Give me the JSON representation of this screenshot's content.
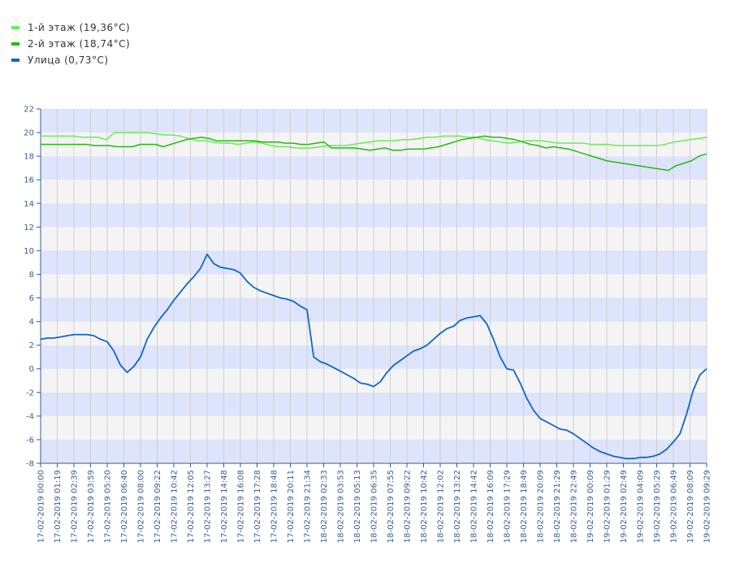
{
  "chart_data": {
    "type": "line",
    "ylim": [
      -8,
      22
    ],
    "y_ticks": [
      "-8",
      "-6",
      "-4",
      "-2",
      "0",
      "2",
      "4",
      "6",
      "8",
      "10",
      "12",
      "14",
      "16",
      "18",
      "20",
      "22"
    ],
    "x_tick_labels": [
      "17-02-2019 00:00",
      "17-02-2019 01:19",
      "17-02-2019 02:39",
      "17-02-2019 03:59",
      "17-02-2019 05:20",
      "17-02-2019 06:40",
      "17-02-2019 08:00",
      "17-02-2019 09:22",
      "17-02-2019 10:42",
      "17-02-2019 12:05",
      "17-02-2019 13:27",
      "17-02-2019 14:48",
      "17-02-2019 16:08",
      "17-02-2019 17:28",
      "17-02-2019 18:48",
      "17-02-2019 20:11",
      "17-02-2019 21:34",
      "18-02-2019 02:33",
      "18-02-2019 03:53",
      "18-02-2019 05:13",
      "18-02-2019 06:35",
      "18-02-2019 07:55",
      "18-02-2019 09:22",
      "18-02-2019 10:42",
      "18-02-2019 12:02",
      "18-02-2019 13:22",
      "18-02-2019 14:42",
      "18-02-2019 16:09",
      "18-02-2019 17:29",
      "18-02-2019 18:49",
      "18-02-2019 20:09",
      "18-02-2019 21:29",
      "18-02-2019 22:49",
      "19-02-2019 00:09",
      "19-02-2019 01:29",
      "19-02-2019 02:49",
      "19-02-2019 04:09",
      "19-02-2019 05:29",
      "19-02-2019 06:49",
      "19-02-2019 08:09",
      "19-02-2019 09:29"
    ],
    "series": [
      {
        "name": "1-й этаж (19,36°C)",
        "color": "#66ee55",
        "values": [
          19.7,
          19.7,
          19.7,
          19.7,
          19.7,
          19.6,
          19.6,
          19.6,
          19.4,
          20.0,
          20.0,
          20.0,
          20.0,
          20.0,
          19.9,
          19.8,
          19.8,
          19.7,
          19.5,
          19.3,
          19.3,
          19.2,
          19.1,
          19.1,
          19.0,
          19.1,
          19.2,
          19.1,
          18.9,
          18.8,
          18.8,
          18.7,
          18.7,
          18.7,
          18.8,
          18.9,
          18.9,
          18.9,
          19.0,
          19.1,
          19.2,
          19.3,
          19.3,
          19.3,
          19.4,
          19.4,
          19.5,
          19.6,
          19.6,
          19.7,
          19.7,
          19.7,
          19.6,
          19.6,
          19.4,
          19.3,
          19.2,
          19.1,
          19.2,
          19.3,
          19.3,
          19.3,
          19.2,
          19.1,
          19.1,
          19.1,
          19.1,
          19.0,
          19.0,
          19.0,
          18.9,
          18.9,
          18.9,
          18.9,
          18.9,
          18.9,
          19.0,
          19.2,
          19.3,
          19.4,
          19.5,
          19.6
        ]
      },
      {
        "name": "2-й этаж (18,74°C)",
        "color": "#22bb11",
        "values": [
          19.0,
          19.0,
          19.0,
          19.0,
          19.0,
          19.0,
          19.0,
          18.9,
          18.9,
          18.9,
          18.8,
          18.8,
          18.8,
          19.0,
          19.0,
          19.0,
          18.8,
          19.0,
          19.2,
          19.4,
          19.5,
          19.6,
          19.5,
          19.3,
          19.3,
          19.3,
          19.3,
          19.3,
          19.3,
          19.2,
          19.2,
          19.2,
          19.1,
          19.1,
          19.0,
          19.0,
          19.1,
          19.2,
          18.7,
          18.7,
          18.7,
          18.7,
          18.6,
          18.5,
          18.6,
          18.7,
          18.5,
          18.5,
          18.6,
          18.6,
          18.6,
          18.7,
          18.8,
          19.0,
          19.2,
          19.4,
          19.5,
          19.6,
          19.7,
          19.6,
          19.6,
          19.5,
          19.4,
          19.2,
          19.0,
          18.9,
          18.7,
          18.8,
          18.7,
          18.6,
          18.4,
          18.2,
          18.0,
          17.8,
          17.6,
          17.5,
          17.4,
          17.3,
          17.2,
          17.1,
          17.0,
          16.9,
          16.8,
          17.2,
          17.4,
          17.6,
          18.0,
          18.2
        ]
      },
      {
        "name": "Улица (0,73°C)",
        "color": "#1166cc",
        "values": [
          2.5,
          2.6,
          2.6,
          2.7,
          2.8,
          2.9,
          2.9,
          2.9,
          2.8,
          2.5,
          2.3,
          1.5,
          0.3,
          -0.3,
          0.2,
          1.0,
          2.5,
          3.5,
          4.3,
          5.0,
          5.8,
          6.5,
          7.2,
          7.8,
          8.5,
          9.7,
          8.9,
          8.6,
          8.5,
          8.4,
          8.1,
          7.4,
          6.9,
          6.6,
          6.4,
          6.2,
          6.0,
          5.9,
          5.7,
          5.3,
          5.0,
          1.0,
          0.6,
          0.4,
          0.1,
          -0.2,
          -0.5,
          -0.8,
          -1.2,
          -1.3,
          -1.5,
          -1.1,
          -0.3,
          0.3,
          0.7,
          1.1,
          1.5,
          1.7,
          2.0,
          2.5,
          3.0,
          3.4,
          3.6,
          4.1,
          4.3,
          4.4,
          4.5,
          3.8,
          2.5,
          1.0,
          0.0,
          -0.1,
          -1.2,
          -2.5,
          -3.5,
          -4.2,
          -4.5,
          -4.8,
          -5.1,
          -5.2,
          -5.5,
          -5.9,
          -6.3,
          -6.7,
          -7.0,
          -7.2,
          -7.4,
          -7.5,
          -7.6,
          -7.6,
          -7.5,
          -7.5,
          -7.4,
          -7.2,
          -6.8,
          -6.2,
          -5.5,
          -3.8,
          -1.8,
          -0.5,
          0.0
        ]
      }
    ]
  }
}
